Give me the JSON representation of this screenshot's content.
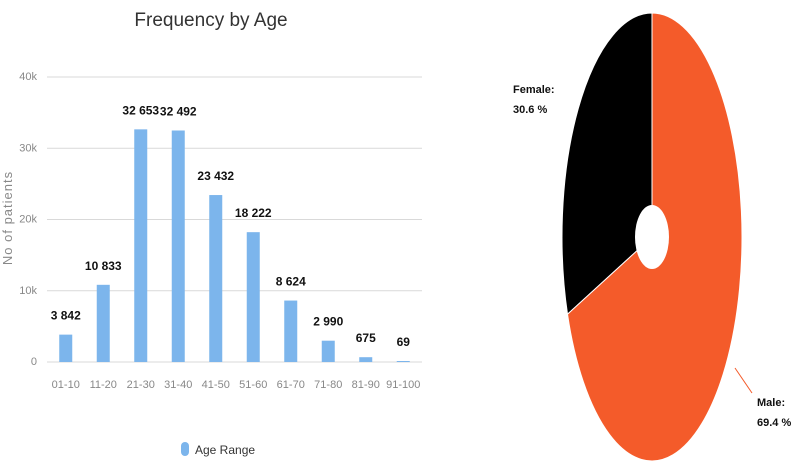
{
  "chart_data": [
    {
      "type": "bar",
      "title": "Frequency by Age",
      "ylabel": "No of patients",
      "xlabel": "",
      "categories": [
        "01-10",
        "11-20",
        "21-30",
        "31-40",
        "41-50",
        "51-60",
        "61-70",
        "71-80",
        "81-90",
        "91-100"
      ],
      "values": [
        3842,
        10833,
        32653,
        32492,
        23432,
        18222,
        8624,
        2990,
        675,
        69
      ],
      "value_labels": [
        "3 842",
        "10 833",
        "32 653",
        "32 492",
        "23 432",
        "18 222",
        "8 624",
        "2 990",
        "675",
        "69"
      ],
      "ylim": [
        0,
        40000
      ],
      "yticks": [
        0,
        10000,
        20000,
        30000,
        40000
      ],
      "ytick_labels": [
        "0",
        "10k",
        "20k",
        "30k",
        "40k"
      ],
      "grid": true,
      "legend": {
        "position": "bottom",
        "entries": [
          "Age Range"
        ]
      },
      "series": [
        {
          "name": "Age Range",
          "color": "#7cb5ec"
        }
      ]
    },
    {
      "type": "pie",
      "donut": true,
      "slices": [
        {
          "label": "Female:",
          "value": 30.6,
          "value_label": "30.6 %",
          "color": "#000000"
        },
        {
          "label": "Male:",
          "value": 69.4,
          "value_label": "69.4 %",
          "color": "#f45b2a"
        }
      ]
    }
  ]
}
